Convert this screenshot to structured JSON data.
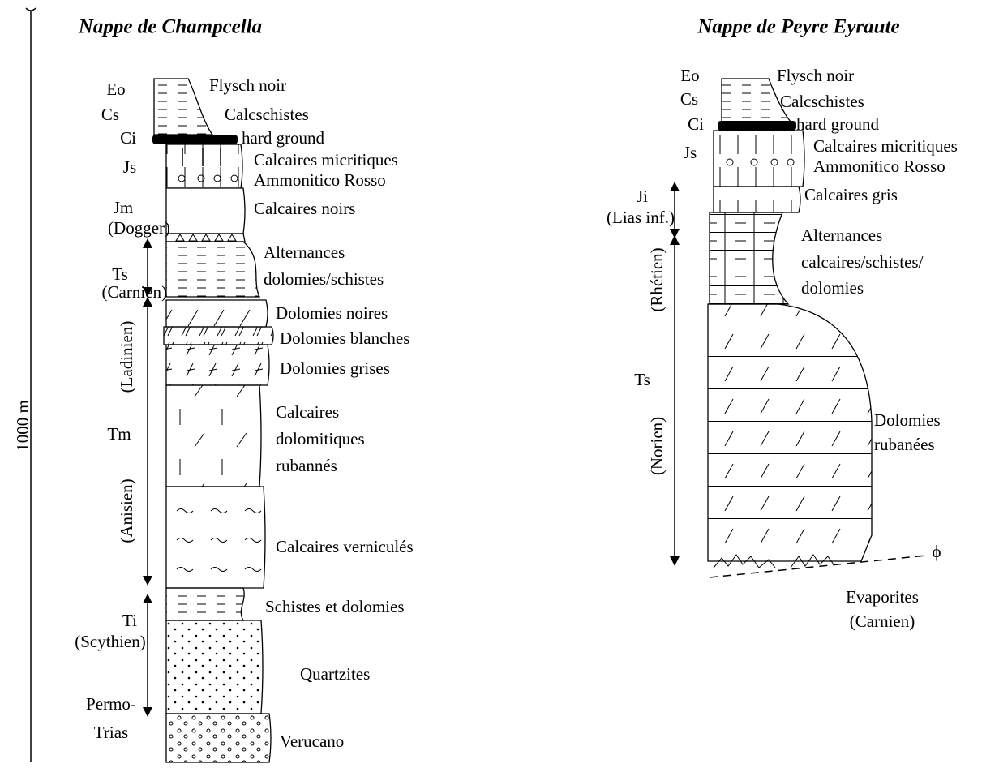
{
  "scale": "1000 m",
  "columns": [
    {
      "title": "Nappe de Champcella",
      "codes": [
        "Eo",
        "Cs",
        "Ci",
        "Js",
        "Jm",
        "(Dogger)",
        "Ts",
        "(Carnien)",
        "Tm",
        "Ti",
        "(Scythien)",
        "Permo-",
        "Trias"
      ],
      "stages": [
        "(Ladinien)",
        "(Anisien)"
      ],
      "lithologies": [
        "Flysch noir",
        "Calcschistes",
        "hard ground",
        "Calcaires micritiques",
        "Ammonitico Rosso",
        "Calcaires noirs",
        "Alternances",
        "dolomies/schistes",
        "Dolomies noires",
        "Dolomies blanches",
        "Dolomies grises",
        "Calcaires",
        "dolomitiques",
        "rubannés",
        "Calcaires verniculés",
        "Schistes et dolomies",
        "Quartzites",
        "Verucano"
      ]
    },
    {
      "title": "Nappe de Peyre Eyraute",
      "codes": [
        "Eo",
        "Cs",
        "Ci",
        "Js",
        "Ji",
        "(Lias inf.)",
        "Ts"
      ],
      "stages": [
        "(Rhétien)",
        "(Norien)"
      ],
      "lithologies": [
        "Flysch noir",
        "Calcschistes",
        "hard ground",
        "Calcaires micritiques",
        "Ammonitico Rosso",
        "Calcaires gris",
        "Alternances",
        "calcaires/schistes/",
        "dolomies",
        "Dolomies",
        "rubanées",
        "Evaporites",
        "(Carnien)"
      ],
      "symbol": "ϕ"
    }
  ]
}
